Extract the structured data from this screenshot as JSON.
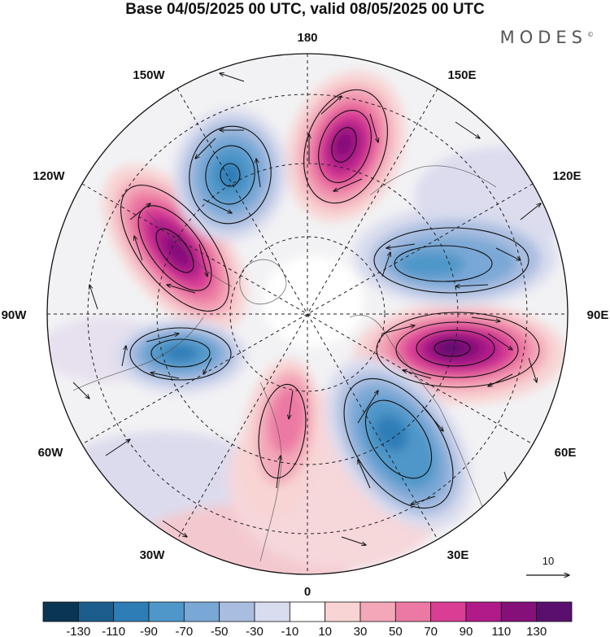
{
  "title": "Base 04/05/2025 00 UTC, valid 08/05/2025 00 UTC",
  "brand": "MODES",
  "brand_mark": "©",
  "map": {
    "projection": "north polar stereographic",
    "longitude_labels": {
      "top": "180",
      "top_left": "150W",
      "top_right": "150E",
      "upper_left": "120W",
      "upper_right": "120E",
      "left": "90W",
      "right": "90E",
      "lower_left": "60W",
      "lower_right": "60E",
      "bottom_left": "30W",
      "bottom_right": "30E",
      "bottom": "0"
    },
    "vector_scale_label": "10"
  },
  "colorbar": {
    "ticks": [
      "-130",
      "-110",
      "-90",
      "-70",
      "-50",
      "-30",
      "-10",
      "10",
      "30",
      "50",
      "70",
      "90",
      "110",
      "130"
    ],
    "colors": [
      "#0b3555",
      "#1d5d8e",
      "#2f7db7",
      "#4f97c9",
      "#7aa8d6",
      "#a9bde0",
      "#d9dcee",
      "#ffffff",
      "#f8d4d4",
      "#f3a7b8",
      "#ec79a3",
      "#d93d94",
      "#b11a89",
      "#86107a",
      "#5a0f6e"
    ]
  },
  "anomalies": [
    {
      "type": "positive",
      "strength": 130,
      "sector": "90E-100E"
    },
    {
      "type": "positive",
      "strength": 110,
      "sector": "160E-170E"
    },
    {
      "type": "positive",
      "strength": 110,
      "sector": "120W"
    },
    {
      "type": "positive",
      "strength": 50,
      "sector": "10W"
    },
    {
      "type": "negative",
      "strength": -70,
      "sector": "110E"
    },
    {
      "type": "negative",
      "strength": -90,
      "sector": "40E"
    },
    {
      "type": "negative",
      "strength": -90,
      "sector": "75W"
    },
    {
      "type": "negative",
      "strength": -90,
      "sector": "160W"
    }
  ],
  "colors": {
    "background": "#ffffff",
    "text": "#111111",
    "grid": "#222222",
    "land": "#f0f0f0"
  }
}
